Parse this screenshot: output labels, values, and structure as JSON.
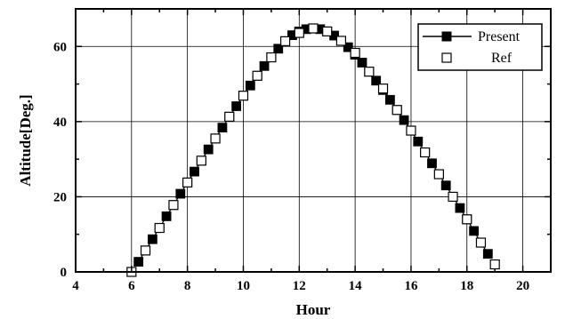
{
  "chart_data": {
    "type": "scatter",
    "title": "",
    "xlabel": "Hour",
    "ylabel": "Altitude[Deg.]",
    "xlim": [
      4,
      21
    ],
    "ylim": [
      0,
      70
    ],
    "xticks": [
      4,
      6,
      8,
      10,
      12,
      14,
      16,
      18,
      20
    ],
    "yticks": [
      0,
      20,
      40,
      60
    ],
    "xtick_labels": [
      "4",
      "6",
      "8",
      "10",
      "12",
      "14",
      "16",
      "18",
      "20"
    ],
    "ytick_labels": [
      "0",
      "20",
      "40",
      "60"
    ],
    "grid": true,
    "legend_position": "top-right",
    "series": [
      {
        "name": "Present",
        "marker": "filled-square-with-line",
        "color": "#000000",
        "x": [
          6.25,
          6.5,
          6.75,
          7.0,
          7.25,
          7.5,
          7.75,
          8.0,
          8.25,
          8.5,
          8.75,
          9.0,
          9.25,
          9.5,
          9.75,
          10.0,
          10.25,
          10.5,
          10.75,
          11.0,
          11.25,
          11.5,
          11.75,
          12.0,
          12.25,
          12.5,
          12.75,
          13.0,
          13.25,
          13.5,
          13.75,
          14.0,
          14.25,
          14.5,
          14.75,
          15.0,
          15.25,
          15.5,
          15.75,
          16.0,
          16.25,
          16.5,
          16.75,
          17.0,
          17.25,
          17.5,
          17.75,
          18.0,
          18.25,
          18.5,
          18.75
        ],
        "y": [
          2.7,
          5.7,
          8.7,
          11.7,
          14.8,
          17.8,
          20.8,
          23.8,
          26.7,
          29.6,
          32.6,
          35.5,
          38.4,
          41.3,
          44.1,
          46.9,
          49.6,
          52.2,
          54.8,
          57.1,
          59.4,
          61.4,
          63.0,
          64.0,
          64.6,
          64.8,
          64.6,
          64.0,
          62.9,
          61.5,
          59.8,
          57.8,
          55.7,
          53.3,
          50.9,
          48.4,
          45.8,
          43.1,
          40.4,
          37.6,
          34.7,
          31.8,
          28.9,
          26.0,
          23.0,
          20.0,
          17.0,
          14.0,
          10.9,
          7.8,
          4.8
        ]
      },
      {
        "name": "Ref",
        "marker": "open-square",
        "color": "#000000",
        "x": [
          6.0,
          6.5,
          7.0,
          7.5,
          8.0,
          8.5,
          9.0,
          9.5,
          10.0,
          10.5,
          11.0,
          11.5,
          12.0,
          12.5,
          13.0,
          13.5,
          14.0,
          14.5,
          15.0,
          15.5,
          16.0,
          16.5,
          17.0,
          17.5,
          18.0,
          18.5,
          19.0
        ],
        "y": [
          0.0,
          5.7,
          11.7,
          17.8,
          23.8,
          29.6,
          35.5,
          41.3,
          46.9,
          52.2,
          57.1,
          61.4,
          63.6,
          64.8,
          64.0,
          61.5,
          58.3,
          53.3,
          48.8,
          43.1,
          37.6,
          31.8,
          26.0,
          20.0,
          14.0,
          7.8,
          2.0
        ]
      }
    ]
  }
}
